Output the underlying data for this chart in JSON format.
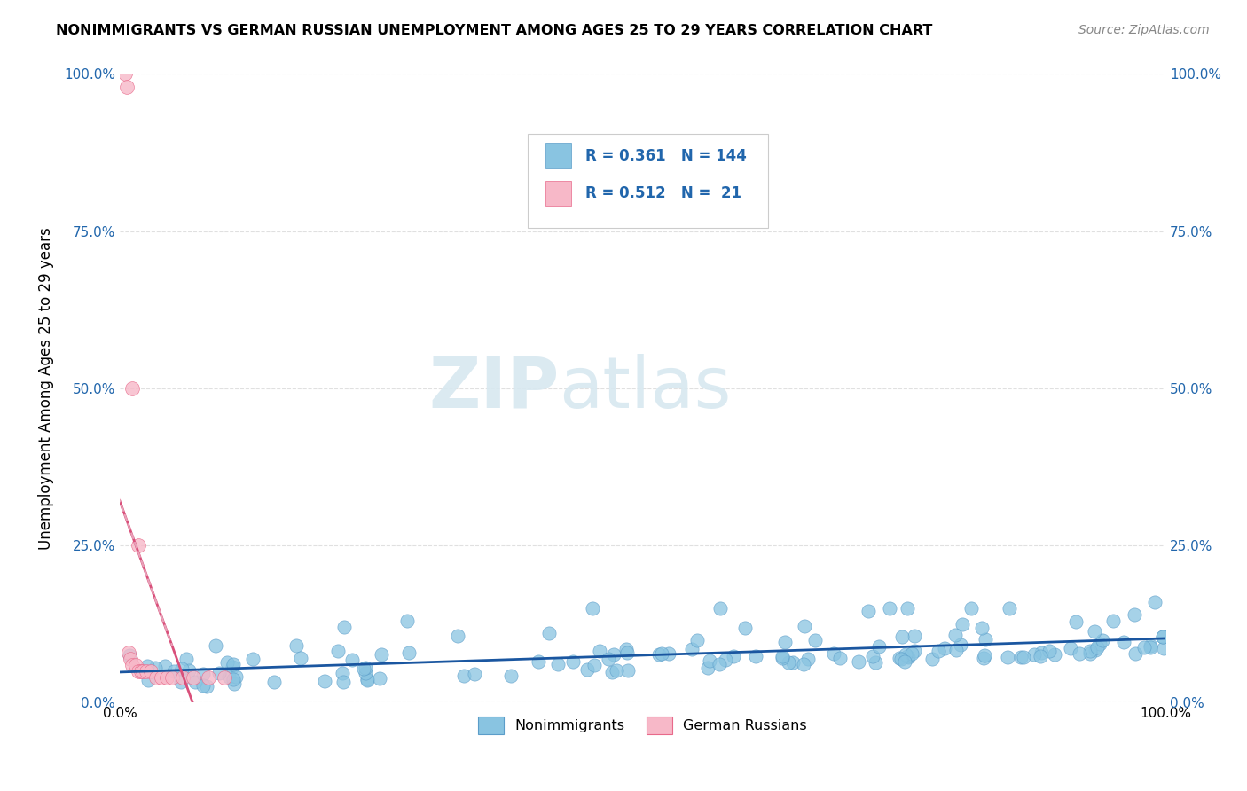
{
  "title": "NONIMMIGRANTS VS GERMAN RUSSIAN UNEMPLOYMENT AMONG AGES 25 TO 29 YEARS CORRELATION CHART",
  "source": "Source: ZipAtlas.com",
  "ylabel": "Unemployment Among Ages 25 to 29 years",
  "xlim": [
    0.0,
    1.0
  ],
  "ylim": [
    0.0,
    1.0
  ],
  "xtick_labels": [
    "0.0%",
    "100.0%"
  ],
  "ytick_labels": [
    "0.0%",
    "25.0%",
    "50.0%",
    "75.0%",
    "100.0%"
  ],
  "ytick_vals": [
    0.0,
    0.25,
    0.5,
    0.75,
    1.0
  ],
  "grid_color": "#e0e0e0",
  "blue_color": "#89c4e1",
  "blue_edge_color": "#5b9dc9",
  "pink_color": "#f7b8c8",
  "pink_edge_color": "#e8698a",
  "blue_line_color": "#1a56a0",
  "pink_line_color": "#d94f7a",
  "pink_dash_color": "#e8a0b8",
  "legend_R_blue": "0.361",
  "legend_N_blue": "144",
  "legend_R_pink": "0.512",
  "legend_N_pink": "21",
  "title_fontsize": 11.5,
  "source_fontsize": 10,
  "axis_label_fontsize": 12,
  "tick_fontsize": 11,
  "legend_text_color": "#2166ac",
  "watermark_color": "#d8e8f0"
}
